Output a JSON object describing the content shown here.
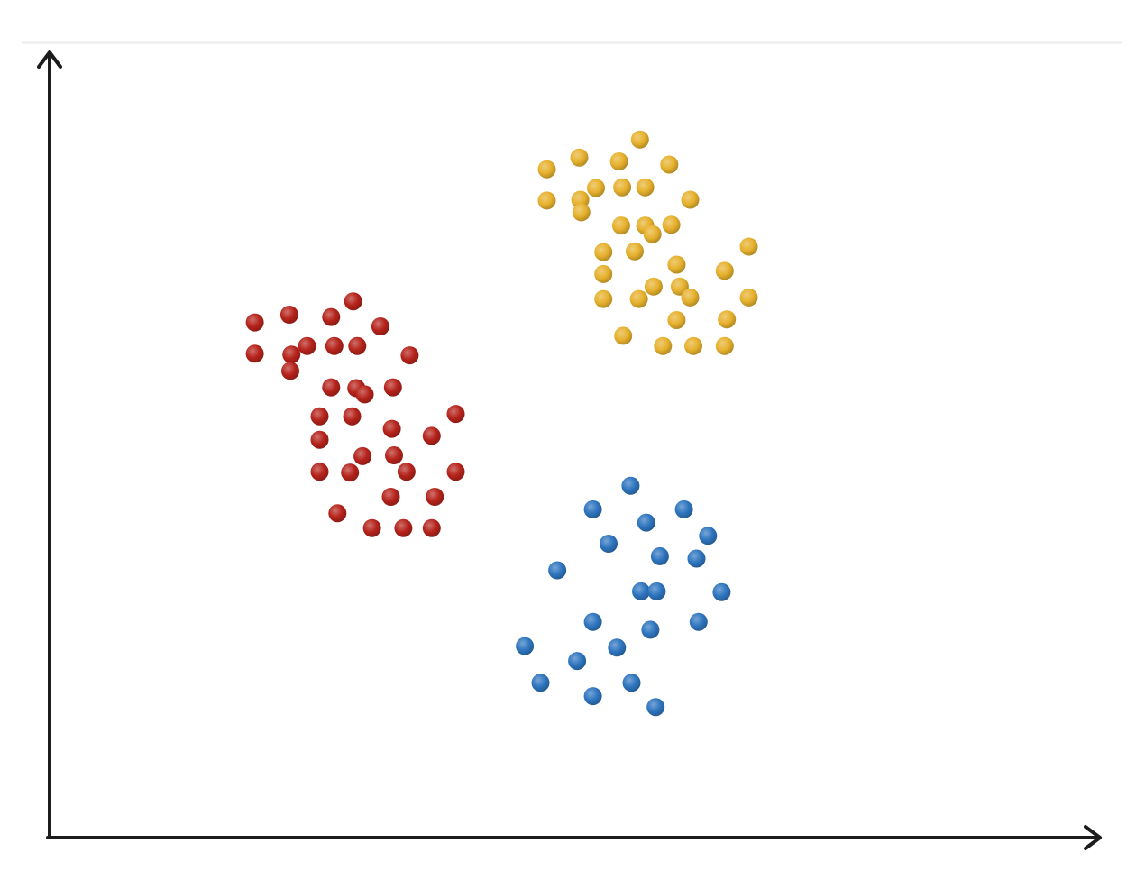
{
  "chart_data": {
    "type": "scatter",
    "title": "",
    "xlabel": "",
    "ylabel": "",
    "xlim": [
      0,
      100
    ],
    "ylim": [
      0,
      100
    ],
    "grid": false,
    "legend": "none",
    "series": [
      {
        "color": "#b5231b",
        "points": [
          [
            19.6,
            65.9
          ],
          [
            19.6,
            61.9
          ],
          [
            22.9,
            66.9
          ],
          [
            23.1,
            61.8
          ],
          [
            23.0,
            59.7
          ],
          [
            24.6,
            62.9
          ],
          [
            26.9,
            66.6
          ],
          [
            27.2,
            62.9
          ],
          [
            29.0,
            68.6
          ],
          [
            29.4,
            62.9
          ],
          [
            31.6,
            65.4
          ],
          [
            26.9,
            57.6
          ],
          [
            29.3,
            57.5
          ],
          [
            30.1,
            56.7
          ],
          [
            32.8,
            57.6
          ],
          [
            34.4,
            61.7
          ],
          [
            25.8,
            53.9
          ],
          [
            28.9,
            53.9
          ],
          [
            32.7,
            52.3
          ],
          [
            25.8,
            50.9
          ],
          [
            36.5,
            51.4
          ],
          [
            29.9,
            48.8
          ],
          [
            32.9,
            48.9
          ],
          [
            25.8,
            46.8
          ],
          [
            28.7,
            46.7
          ],
          [
            34.1,
            46.8
          ],
          [
            38.8,
            54.2
          ],
          [
            38.8,
            46.8
          ],
          [
            32.6,
            43.6
          ],
          [
            36.8,
            43.6
          ],
          [
            27.5,
            41.5
          ],
          [
            30.8,
            39.6
          ],
          [
            33.8,
            39.6
          ],
          [
            36.5,
            39.6
          ]
        ]
      },
      {
        "color": "#e6b12d",
        "points": [
          [
            47.5,
            85.5
          ],
          [
            50.6,
            87.0
          ],
          [
            54.4,
            86.5
          ],
          [
            56.4,
            89.3
          ],
          [
            59.2,
            86.1
          ],
          [
            47.5,
            81.5
          ],
          [
            50.7,
            81.6
          ],
          [
            50.8,
            80.0
          ],
          [
            52.2,
            83.1
          ],
          [
            54.7,
            83.2
          ],
          [
            56.9,
            83.2
          ],
          [
            61.2,
            81.6
          ],
          [
            54.6,
            78.3
          ],
          [
            56.9,
            78.3
          ],
          [
            57.6,
            77.2
          ],
          [
            59.4,
            78.4
          ],
          [
            52.9,
            74.9
          ],
          [
            55.9,
            75.0
          ],
          [
            66.8,
            75.6
          ],
          [
            52.9,
            72.1
          ],
          [
            59.9,
            73.3
          ],
          [
            64.5,
            72.5
          ],
          [
            52.9,
            68.9
          ],
          [
            56.3,
            68.9
          ],
          [
            57.7,
            70.5
          ],
          [
            60.2,
            70.5
          ],
          [
            61.2,
            69.1
          ],
          [
            66.8,
            69.1
          ],
          [
            54.8,
            64.2
          ],
          [
            59.9,
            66.2
          ],
          [
            64.7,
            66.3
          ],
          [
            58.6,
            62.9
          ],
          [
            61.5,
            62.9
          ],
          [
            64.5,
            62.9
          ]
        ]
      },
      {
        "color": "#2e75bf",
        "points": [
          [
            55.5,
            45.0
          ],
          [
            51.9,
            42.0
          ],
          [
            57.0,
            40.3
          ],
          [
            60.6,
            42.0
          ],
          [
            62.9,
            38.6
          ],
          [
            53.4,
            37.6
          ],
          [
            48.5,
            34.2
          ],
          [
            58.3,
            36.0
          ],
          [
            61.8,
            35.7
          ],
          [
            56.5,
            31.5
          ],
          [
            58.0,
            31.5
          ],
          [
            64.2,
            31.4
          ],
          [
            51.9,
            27.6
          ],
          [
            57.4,
            26.6
          ],
          [
            62.0,
            27.6
          ],
          [
            45.4,
            24.5
          ],
          [
            50.4,
            22.6
          ],
          [
            54.2,
            24.3
          ],
          [
            46.9,
            19.8
          ],
          [
            51.9,
            18.1
          ],
          [
            55.6,
            19.8
          ],
          [
            57.9,
            16.7
          ]
        ]
      }
    ]
  }
}
